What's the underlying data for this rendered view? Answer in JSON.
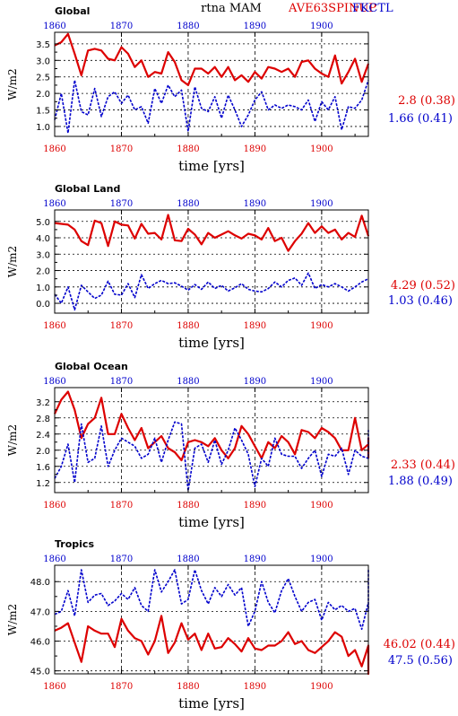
{
  "header": {
    "title": "rtna  MAM",
    "exp_name": "AVE63SPINUP",
    "ctl_name": "FKCTL"
  },
  "colors": {
    "exp": "#dd0000",
    "ctl": "#0000cc",
    "axis": "#000000"
  },
  "chart_data": [
    {
      "type": "line",
      "title": "Global",
      "xlabel": "time [yrs]",
      "ylabel": "W/m2",
      "xlim": [
        1860,
        1907
      ],
      "ylim": [
        0.7,
        3.85
      ],
      "yticks": [
        "1.0",
        "1.5",
        "2.0",
        "2.5",
        "3.0",
        "3.5"
      ],
      "xticks": [
        "1860",
        "1870",
        "1880",
        "1890",
        "1900"
      ],
      "grid": true,
      "x_start": 1860,
      "series": [
        {
          "name": "AVE63SPINUP",
          "stat": "2.8 (0.38)",
          "values": [
            3.45,
            3.55,
            3.8,
            3.2,
            2.55,
            3.3,
            3.35,
            3.3,
            3.05,
            3.0,
            3.4,
            3.2,
            2.8,
            3.0,
            2.5,
            2.65,
            2.6,
            3.25,
            2.95,
            2.4,
            2.25,
            2.75,
            2.75,
            2.6,
            2.8,
            2.5,
            2.8,
            2.4,
            2.55,
            2.35,
            2.65,
            2.45,
            2.8,
            2.75,
            2.65,
            2.75,
            2.5,
            2.95,
            3.0,
            2.75,
            2.6,
            2.5,
            3.15,
            2.3,
            2.65,
            3.05,
            2.35,
            2.9
          ]
        },
        {
          "name": "FKCTL",
          "stat": "1.66 (0.41)",
          "values": [
            1.2,
            2.0,
            0.8,
            2.4,
            1.45,
            1.35,
            2.15,
            1.3,
            1.9,
            2.05,
            1.7,
            1.95,
            1.5,
            1.6,
            1.1,
            2.15,
            1.7,
            2.25,
            1.9,
            2.1,
            0.85,
            2.2,
            1.55,
            1.45,
            1.9,
            1.25,
            1.95,
            1.5,
            1.0,
            1.35,
            1.8,
            2.05,
            1.5,
            1.65,
            1.55,
            1.65,
            1.6,
            1.5,
            1.8,
            1.15,
            1.75,
            1.5,
            1.9,
            0.9,
            1.6,
            1.55,
            1.8,
            2.4
          ]
        }
      ]
    },
    {
      "type": "line",
      "title": "Global Land",
      "xlabel": "time [yrs]",
      "ylabel": "W/m2",
      "xlim": [
        1860,
        1907
      ],
      "ylim": [
        -0.6,
        5.7
      ],
      "yticks": [
        "0.0",
        "1.0",
        "2.0",
        "3.0",
        "4.0",
        "5.0"
      ],
      "xticks": [
        "1860",
        "1870",
        "1880",
        "1890",
        "1900"
      ],
      "grid": true,
      "x_start": 1860,
      "series": [
        {
          "name": "AVE63SPINUP",
          "stat": "4.29 (0.52)",
          "values": [
            4.9,
            4.85,
            4.8,
            4.5,
            3.8,
            3.55,
            5.05,
            4.9,
            3.5,
            5.0,
            4.8,
            4.75,
            3.95,
            4.85,
            4.25,
            4.3,
            3.9,
            5.4,
            3.85,
            3.8,
            4.55,
            4.2,
            3.6,
            4.3,
            4.0,
            4.2,
            4.4,
            4.15,
            3.95,
            4.25,
            4.15,
            3.9,
            4.6,
            3.8,
            4.0,
            3.2,
            3.8,
            4.25,
            4.9,
            4.3,
            4.7,
            4.3,
            4.5,
            3.9,
            4.3,
            4.05,
            5.35,
            4.1
          ]
        },
        {
          "name": "FKCTL",
          "stat": "1.03 (0.46)",
          "values": [
            0.55,
            0.0,
            1.0,
            -0.4,
            1.1,
            0.7,
            0.3,
            0.5,
            1.35,
            0.55,
            0.5,
            1.2,
            0.35,
            1.75,
            0.9,
            1.2,
            1.4,
            1.2,
            1.25,
            1.05,
            0.8,
            1.15,
            0.85,
            1.3,
            0.9,
            1.1,
            0.75,
            0.95,
            1.2,
            0.85,
            0.75,
            0.7,
            0.9,
            1.3,
            1.0,
            1.4,
            1.55,
            1.1,
            1.85,
            0.9,
            1.15,
            1.0,
            1.2,
            1.0,
            0.75,
            1.0,
            1.3,
            1.5
          ]
        }
      ]
    },
    {
      "type": "line",
      "title": "Global Ocean",
      "xlabel": "time [yrs]",
      "ylabel": "W/m2",
      "xlim": [
        1860,
        1907
      ],
      "ylim": [
        0.95,
        3.55
      ],
      "yticks": [
        "1.2",
        "1.6",
        "2.0",
        "2.4",
        "2.8",
        "3.2"
      ],
      "xticks": [
        "1860",
        "1870",
        "1880",
        "1890",
        "1900"
      ],
      "grid": true,
      "x_start": 1860,
      "series": [
        {
          "name": "AVE63SPINUP",
          "stat": "2.33 (0.44)",
          "values": [
            2.9,
            3.25,
            3.45,
            3.0,
            2.3,
            2.65,
            2.8,
            3.3,
            2.4,
            2.4,
            2.9,
            2.55,
            2.25,
            2.55,
            2.05,
            2.2,
            2.35,
            2.05,
            1.95,
            1.75,
            2.2,
            2.25,
            2.2,
            2.1,
            2.3,
            2.0,
            1.8,
            2.05,
            2.6,
            2.4,
            2.1,
            1.8,
            2.2,
            2.05,
            2.35,
            2.2,
            1.9,
            2.5,
            2.45,
            2.3,
            2.55,
            2.45,
            2.3,
            2.0,
            2.0,
            2.8,
            2.0,
            2.15,
            2.3,
            1.8
          ]
        },
        {
          "name": "FKCTL",
          "stat": "1.88 (0.49)",
          "values": [
            1.3,
            1.6,
            2.15,
            1.2,
            2.65,
            1.7,
            1.8,
            2.6,
            1.6,
            2.0,
            2.3,
            2.2,
            2.1,
            1.8,
            1.9,
            2.3,
            1.7,
            2.25,
            2.7,
            2.65,
            1.0,
            2.05,
            2.15,
            1.7,
            2.25,
            1.65,
            2.0,
            2.55,
            2.25,
            1.9,
            1.1,
            1.8,
            1.6,
            2.3,
            1.9,
            1.85,
            1.85,
            1.55,
            1.8,
            2.0,
            1.35,
            1.9,
            1.85,
            2.05,
            1.4,
            2.0,
            1.85,
            1.8,
            2.4,
            2.5
          ]
        }
      ]
    },
    {
      "type": "line",
      "title": "Tropics",
      "xlabel": "time [yrs]",
      "ylabel": "W/m2",
      "xlim": [
        1860,
        1907
      ],
      "ylim": [
        44.9,
        48.55
      ],
      "yticks": [
        "45.0",
        "46.0",
        "47.0",
        "48.0"
      ],
      "xticks": [
        "1860",
        "1870",
        "1880",
        "1890",
        "1900"
      ],
      "grid": true,
      "x_start": 1860,
      "series": [
        {
          "name": "AVE63SPINUP",
          "stat": "46.02 (0.44)",
          "values": [
            46.35,
            46.45,
            46.6,
            45.95,
            45.3,
            46.5,
            46.35,
            46.25,
            46.25,
            45.8,
            46.75,
            46.35,
            46.1,
            46.0,
            45.55,
            46.0,
            46.85,
            45.6,
            45.95,
            46.6,
            46.05,
            46.25,
            45.7,
            46.25,
            45.75,
            45.8,
            46.1,
            45.9,
            45.65,
            46.1,
            45.75,
            45.7,
            45.85,
            45.85,
            46.0,
            46.3,
            45.9,
            46.0,
            45.7,
            45.6,
            45.8,
            46.0,
            46.3,
            46.15,
            45.5,
            45.7,
            45.15,
            45.85,
            44.9,
            45.75,
            45.85,
            45.8
          ]
        },
        {
          "name": "FKCTL",
          "stat": "47.5 (0.56)",
          "values": [
            46.9,
            47.0,
            47.7,
            46.85,
            48.4,
            47.3,
            47.55,
            47.6,
            47.2,
            47.35,
            47.6,
            47.4,
            47.8,
            47.2,
            47.0,
            48.4,
            47.65,
            48.0,
            48.4,
            47.25,
            47.4,
            48.4,
            47.7,
            47.25,
            47.8,
            47.5,
            47.9,
            47.55,
            47.8,
            46.5,
            47.0,
            48.0,
            47.3,
            46.95,
            47.7,
            48.1,
            47.5,
            47.0,
            47.3,
            47.4,
            46.7,
            47.3,
            47.05,
            47.2,
            47.0,
            47.1,
            46.4,
            47.3,
            47.0,
            47.3,
            47.6,
            48.4
          ]
        }
      ]
    }
  ]
}
